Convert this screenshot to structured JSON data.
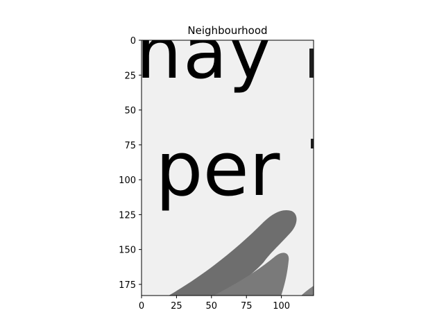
{
  "chart_data": {
    "type": "image",
    "title": "Neighbourhood",
    "colormap": "gray",
    "image_size": [
      123,
      183
    ],
    "xlim": [
      0,
      123
    ],
    "ylim": [
      183,
      0
    ],
    "x_ticks": [
      0,
      25,
      50,
      75,
      100
    ],
    "x_tick_labels": [
      "0",
      "25",
      "50",
      "75",
      "100"
    ],
    "y_ticks": [
      0,
      25,
      50,
      75,
      100,
      125,
      150,
      175
    ],
    "y_tick_labels": [
      "0",
      "25",
      "50",
      "75",
      "100",
      "125",
      "150",
      "175"
    ],
    "image_text": [
      "nay",
      "per"
    ],
    "colors": {
      "paper": "#f0f0f0",
      "ink": "#1e1e1e",
      "shadow": "#6e6e6e",
      "frame": "#000000"
    }
  }
}
